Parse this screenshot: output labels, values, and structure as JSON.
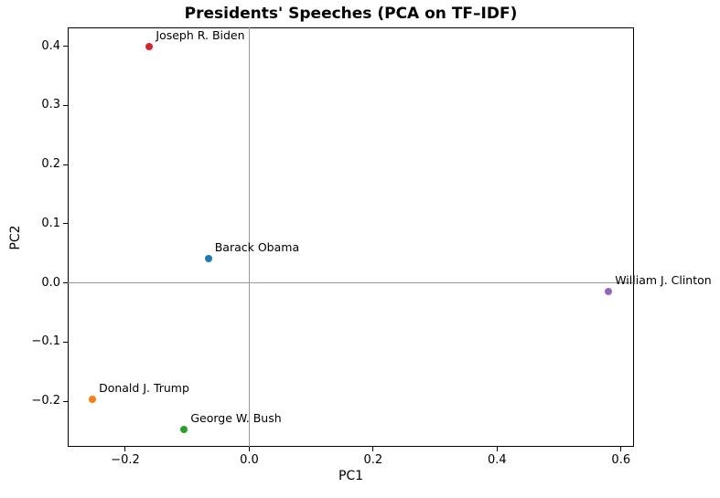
{
  "chart_data": {
    "type": "scatter",
    "title": "Presidents' Speeches (PCA on TF–IDF)",
    "xlabel": "PC1",
    "ylabel": "PC2",
    "xlim": [
      -0.293,
      0.621
    ],
    "ylim": [
      -0.277,
      0.432
    ],
    "grid": "zero-lines-only",
    "legend": "none",
    "axis_color": "#000000",
    "zero_line_color": "#9a9a9a",
    "x_ticks": [
      {
        "value": -0.2,
        "label": "−0.2"
      },
      {
        "value": 0.0,
        "label": "0.0"
      },
      {
        "value": 0.2,
        "label": "0.2"
      },
      {
        "value": 0.4,
        "label": "0.4"
      },
      {
        "value": 0.6,
        "label": "0.6"
      }
    ],
    "y_ticks": [
      {
        "value": -0.2,
        "label": "−0.2"
      },
      {
        "value": -0.1,
        "label": "−0.1"
      },
      {
        "value": 0.0,
        "label": "0.0"
      },
      {
        "value": 0.1,
        "label": "0.1"
      },
      {
        "value": 0.2,
        "label": "0.2"
      },
      {
        "value": 0.3,
        "label": "0.3"
      },
      {
        "value": 0.4,
        "label": "0.4"
      }
    ],
    "points": [
      {
        "name": "Barack Obama",
        "x": -0.066,
        "y": 0.041,
        "color": "#1f77b4"
      },
      {
        "name": "Donald J. Trump",
        "x": -0.253,
        "y": -0.196,
        "color": "#ff7f0e"
      },
      {
        "name": "George W. Bush",
        "x": -0.105,
        "y": -0.247,
        "color": "#2ca02c"
      },
      {
        "name": "Joseph R. Biden",
        "x": -0.161,
        "y": 0.4,
        "color": "#d62728"
      },
      {
        "name": "William J. Clinton",
        "x": 0.58,
        "y": -0.014,
        "color": "#9467bd"
      }
    ]
  }
}
